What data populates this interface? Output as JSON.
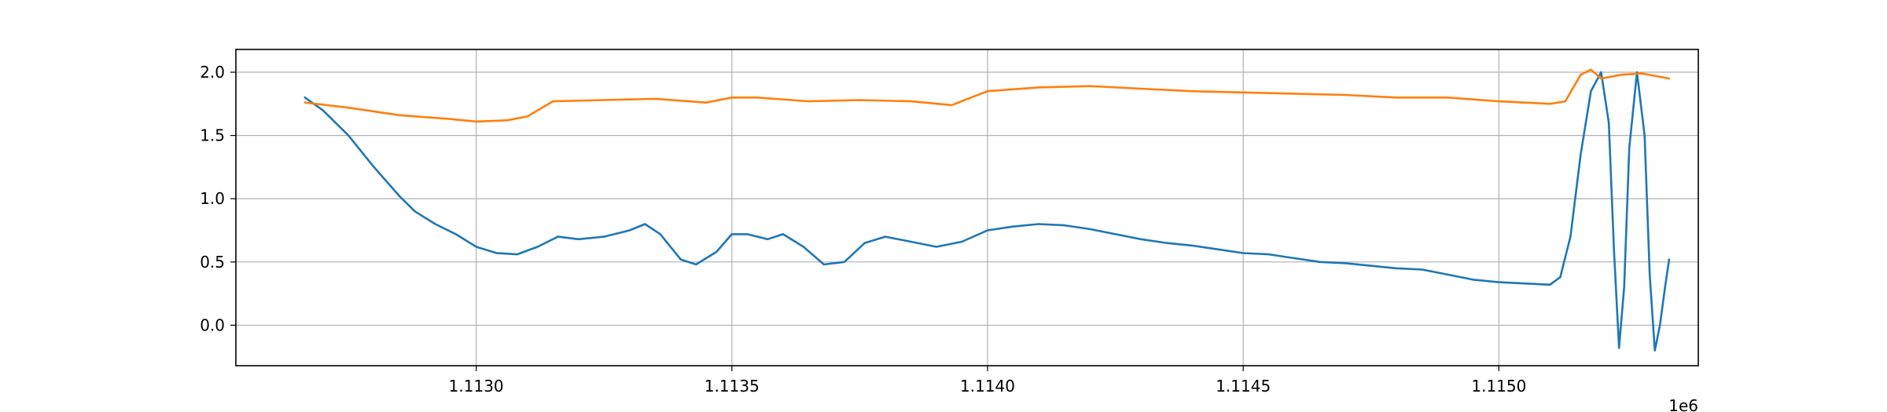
{
  "chart_data": {
    "type": "line",
    "title": "",
    "xlabel": "",
    "ylabel": "",
    "x_offset_label": "1e6",
    "xlim": [
      1112530,
      1115390
    ],
    "ylim": [
      -0.32,
      2.18
    ],
    "grid": true,
    "x_ticks": [
      {
        "value": 1113000,
        "label": "1.1130"
      },
      {
        "value": 1113500,
        "label": "1.1135"
      },
      {
        "value": 1114000,
        "label": "1.1140"
      },
      {
        "value": 1114500,
        "label": "1.1145"
      },
      {
        "value": 1115000,
        "label": "1.1150"
      }
    ],
    "y_ticks": [
      {
        "value": 0.0,
        "label": "0.0"
      },
      {
        "value": 0.5,
        "label": "0.5"
      },
      {
        "value": 1.0,
        "label": "1.0"
      },
      {
        "value": 1.5,
        "label": "1.5"
      },
      {
        "value": 2.0,
        "label": "2.0"
      }
    ],
    "series": [
      {
        "color": "#1f77b4",
        "x": [
          1112665,
          1112700,
          1112750,
          1112800,
          1112850,
          1112880,
          1112920,
          1112960,
          1113000,
          1113040,
          1113080,
          1113120,
          1113160,
          1113200,
          1113250,
          1113300,
          1113330,
          1113360,
          1113400,
          1113430,
          1113470,
          1113500,
          1113530,
          1113570,
          1113600,
          1113640,
          1113680,
          1113720,
          1113760,
          1113800,
          1113850,
          1113900,
          1113950,
          1114000,
          1114050,
          1114100,
          1114150,
          1114200,
          1114250,
          1114300,
          1114350,
          1114400,
          1114450,
          1114500,
          1114550,
          1114600,
          1114650,
          1114700,
          1114750,
          1114800,
          1114850,
          1114900,
          1114950,
          1115000,
          1115050,
          1115100,
          1115120,
          1115140,
          1115160,
          1115180,
          1115200,
          1115215,
          1115225,
          1115235,
          1115245,
          1115255,
          1115270,
          1115285,
          1115295,
          1115305,
          1115315,
          1115325,
          1115333
        ],
        "values": [
          1.8,
          1.7,
          1.5,
          1.25,
          1.02,
          0.9,
          0.8,
          0.72,
          0.62,
          0.57,
          0.56,
          0.62,
          0.7,
          0.68,
          0.7,
          0.75,
          0.8,
          0.72,
          0.52,
          0.48,
          0.58,
          0.72,
          0.72,
          0.68,
          0.72,
          0.62,
          0.48,
          0.5,
          0.65,
          0.7,
          0.66,
          0.62,
          0.66,
          0.75,
          0.78,
          0.8,
          0.79,
          0.76,
          0.72,
          0.68,
          0.65,
          0.63,
          0.6,
          0.57,
          0.56,
          0.53,
          0.5,
          0.49,
          0.47,
          0.45,
          0.44,
          0.4,
          0.36,
          0.34,
          0.33,
          0.32,
          0.38,
          0.7,
          1.35,
          1.85,
          2.0,
          1.6,
          0.6,
          -0.18,
          0.3,
          1.4,
          2.0,
          1.5,
          0.4,
          -0.2,
          0.0,
          0.3,
          0.52
        ]
      },
      {
        "color": "#ff7f0e",
        "x": [
          1112665,
          1112750,
          1112850,
          1112950,
          1113000,
          1113060,
          1113100,
          1113150,
          1113250,
          1113350,
          1113450,
          1113500,
          1113550,
          1113650,
          1113750,
          1113850,
          1113930,
          1114000,
          1114100,
          1114200,
          1114300,
          1114400,
          1114500,
          1114600,
          1114700,
          1114800,
          1114900,
          1115000,
          1115100,
          1115130,
          1115160,
          1115180,
          1115200,
          1115240,
          1115280,
          1115333
        ],
        "values": [
          1.76,
          1.72,
          1.66,
          1.63,
          1.61,
          1.62,
          1.65,
          1.77,
          1.78,
          1.79,
          1.76,
          1.8,
          1.8,
          1.77,
          1.78,
          1.77,
          1.74,
          1.85,
          1.88,
          1.89,
          1.87,
          1.85,
          1.84,
          1.83,
          1.82,
          1.8,
          1.8,
          1.77,
          1.75,
          1.77,
          1.98,
          2.02,
          1.95,
          1.98,
          1.99,
          1.95
        ]
      }
    ]
  }
}
